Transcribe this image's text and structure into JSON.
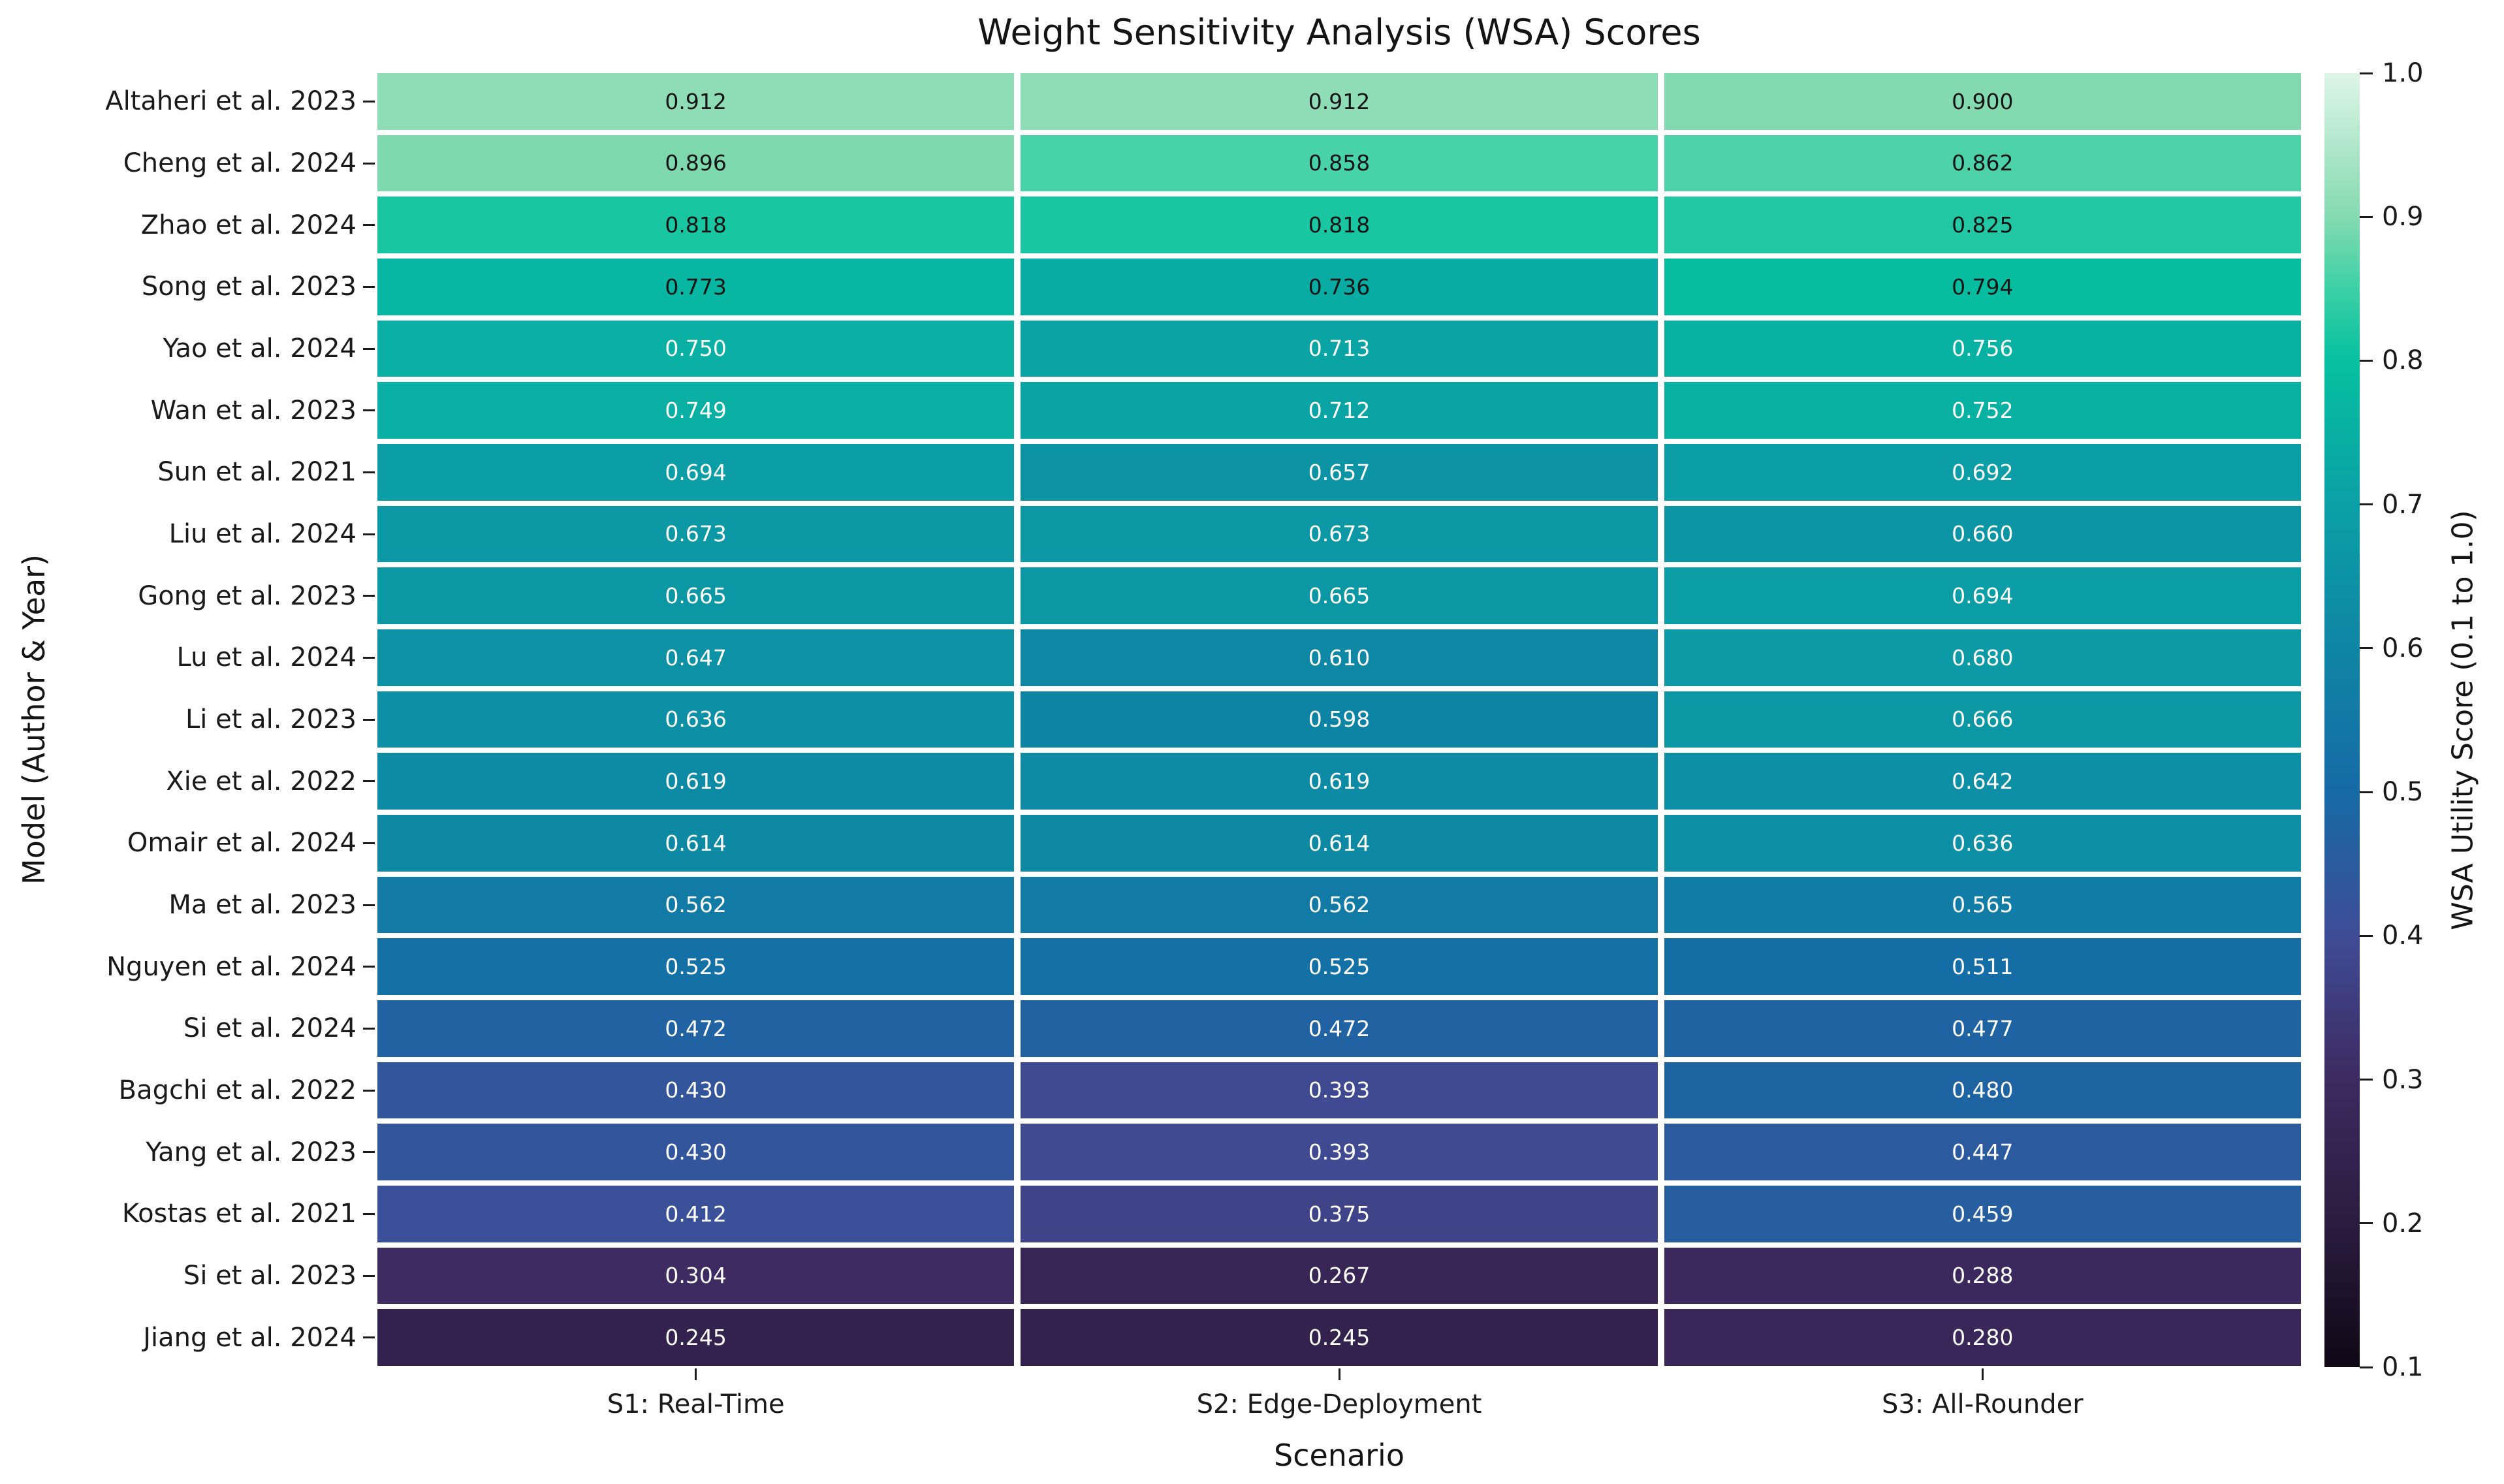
{
  "chart_data": {
    "type": "heatmap",
    "title": "Weight Sensitivity Analysis (WSA) Scores",
    "xlabel": "Scenario",
    "ylabel": "Model (Author & Year)",
    "columns": [
      "S1: Real-Time",
      "S2: Edge-Deployment",
      "S3: All-Rounder"
    ],
    "rows": [
      "Altaheri et al. 2023",
      "Cheng et al. 2024",
      "Zhao et al. 2024",
      "Song et al. 2023",
      "Yao et al. 2024",
      "Wan et al. 2023",
      "Sun et al. 2021",
      "Liu et al. 2024",
      "Gong et al. 2023",
      "Lu et al. 2024",
      "Li et al. 2023",
      "Xie et al. 2022",
      "Omair et al. 2024",
      "Ma et al. 2023",
      "Nguyen et al. 2024",
      "Si et al. 2024",
      "Bagchi et al. 2022",
      "Yang et al. 2023",
      "Kostas et al. 2021",
      "Si et al. 2023",
      "Jiang et al. 2024"
    ],
    "values": [
      [
        0.912,
        0.912,
        0.9
      ],
      [
        0.896,
        0.858,
        0.862
      ],
      [
        0.818,
        0.818,
        0.825
      ],
      [
        0.773,
        0.736,
        0.794
      ],
      [
        0.75,
        0.713,
        0.756
      ],
      [
        0.749,
        0.712,
        0.752
      ],
      [
        0.694,
        0.657,
        0.692
      ],
      [
        0.673,
        0.673,
        0.66
      ],
      [
        0.665,
        0.665,
        0.694
      ],
      [
        0.647,
        0.61,
        0.68
      ],
      [
        0.636,
        0.598,
        0.666
      ],
      [
        0.619,
        0.619,
        0.642
      ],
      [
        0.614,
        0.614,
        0.636
      ],
      [
        0.562,
        0.562,
        0.565
      ],
      [
        0.525,
        0.525,
        0.511
      ],
      [
        0.472,
        0.472,
        0.477
      ],
      [
        0.43,
        0.393,
        0.48
      ],
      [
        0.43,
        0.393,
        0.447
      ],
      [
        0.412,
        0.375,
        0.459
      ],
      [
        0.304,
        0.267,
        0.288
      ],
      [
        0.245,
        0.245,
        0.28
      ]
    ],
    "value_decimals": 3,
    "vmin": 0.1,
    "vmax": 1.0,
    "colorbar": {
      "label": "WSA Utility Score (0.1 to 1.0)",
      "ticks": [
        "1.0",
        "0.9",
        "0.8",
        "0.7",
        "0.6",
        "0.5",
        "0.4",
        "0.3",
        "0.2",
        "0.1"
      ],
      "position": "right"
    },
    "colormap": {
      "name": "mako",
      "anchors": [
        [
          0.1,
          "#0f0714"
        ],
        [
          0.2,
          "#2b1c3f"
        ],
        [
          0.3,
          "#3d2a60"
        ],
        [
          0.4,
          "#3f4c96"
        ],
        [
          0.5,
          "#166aa6"
        ],
        [
          0.6,
          "#0e85a4"
        ],
        [
          0.7,
          "#0ba0a6"
        ],
        [
          0.8,
          "#06c09f"
        ],
        [
          0.85,
          "#3cd0a6"
        ],
        [
          0.9,
          "#84dab0"
        ],
        [
          1.0,
          "#def5e7"
        ]
      ]
    },
    "annotation": {
      "dark_text_rows": 4,
      "dark_color": "#151515",
      "light_color": "#ffffff"
    },
    "grid_gap_color": "#ffffff",
    "background": "#ffffff",
    "legend_position": "none"
  }
}
